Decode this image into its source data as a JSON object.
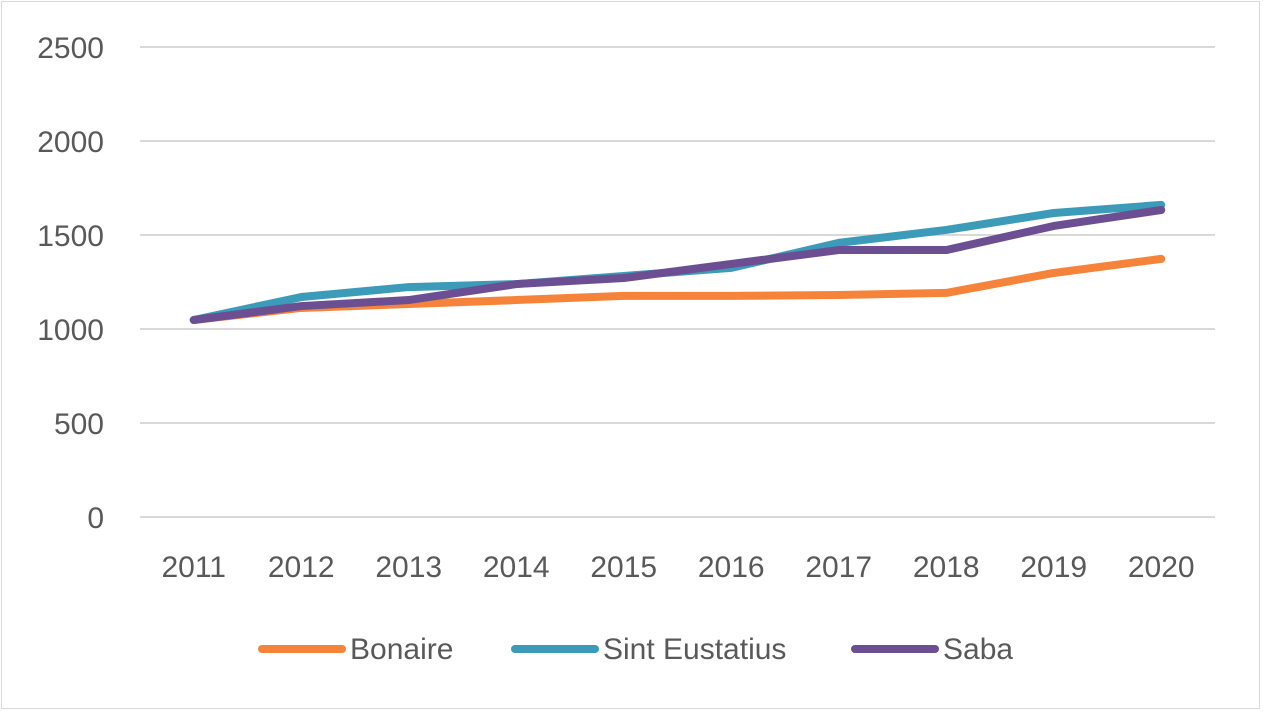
{
  "chart_data": {
    "type": "line",
    "categories": [
      "2011",
      "2012",
      "2013",
      "2014",
      "2015",
      "2016",
      "2017",
      "2018",
      "2019",
      "2020"
    ],
    "series": [
      {
        "name": "Bonaire",
        "color": "#F5843A",
        "values": [
          1048,
          1112,
          1133,
          1154,
          1176,
          1176,
          1181,
          1192,
          1298,
          1373
        ]
      },
      {
        "name": "Sint Eustatius",
        "color": "#3B9BB8",
        "values": [
          1048,
          1170,
          1223,
          1239,
          1282,
          1325,
          1458,
          1527,
          1617,
          1660
        ]
      },
      {
        "name": "Saba",
        "color": "#6C4F93",
        "values": [
          1048,
          1122,
          1154,
          1239,
          1271,
          1346,
          1420,
          1420,
          1548,
          1633
        ]
      }
    ],
    "ylim": [
      0,
      2500
    ],
    "yticks": [
      "0",
      "500",
      "1000",
      "1500",
      "2000",
      "2500"
    ],
    "grid": true,
    "legend": "bottom",
    "title": "",
    "xlabel": "",
    "ylabel": ""
  }
}
